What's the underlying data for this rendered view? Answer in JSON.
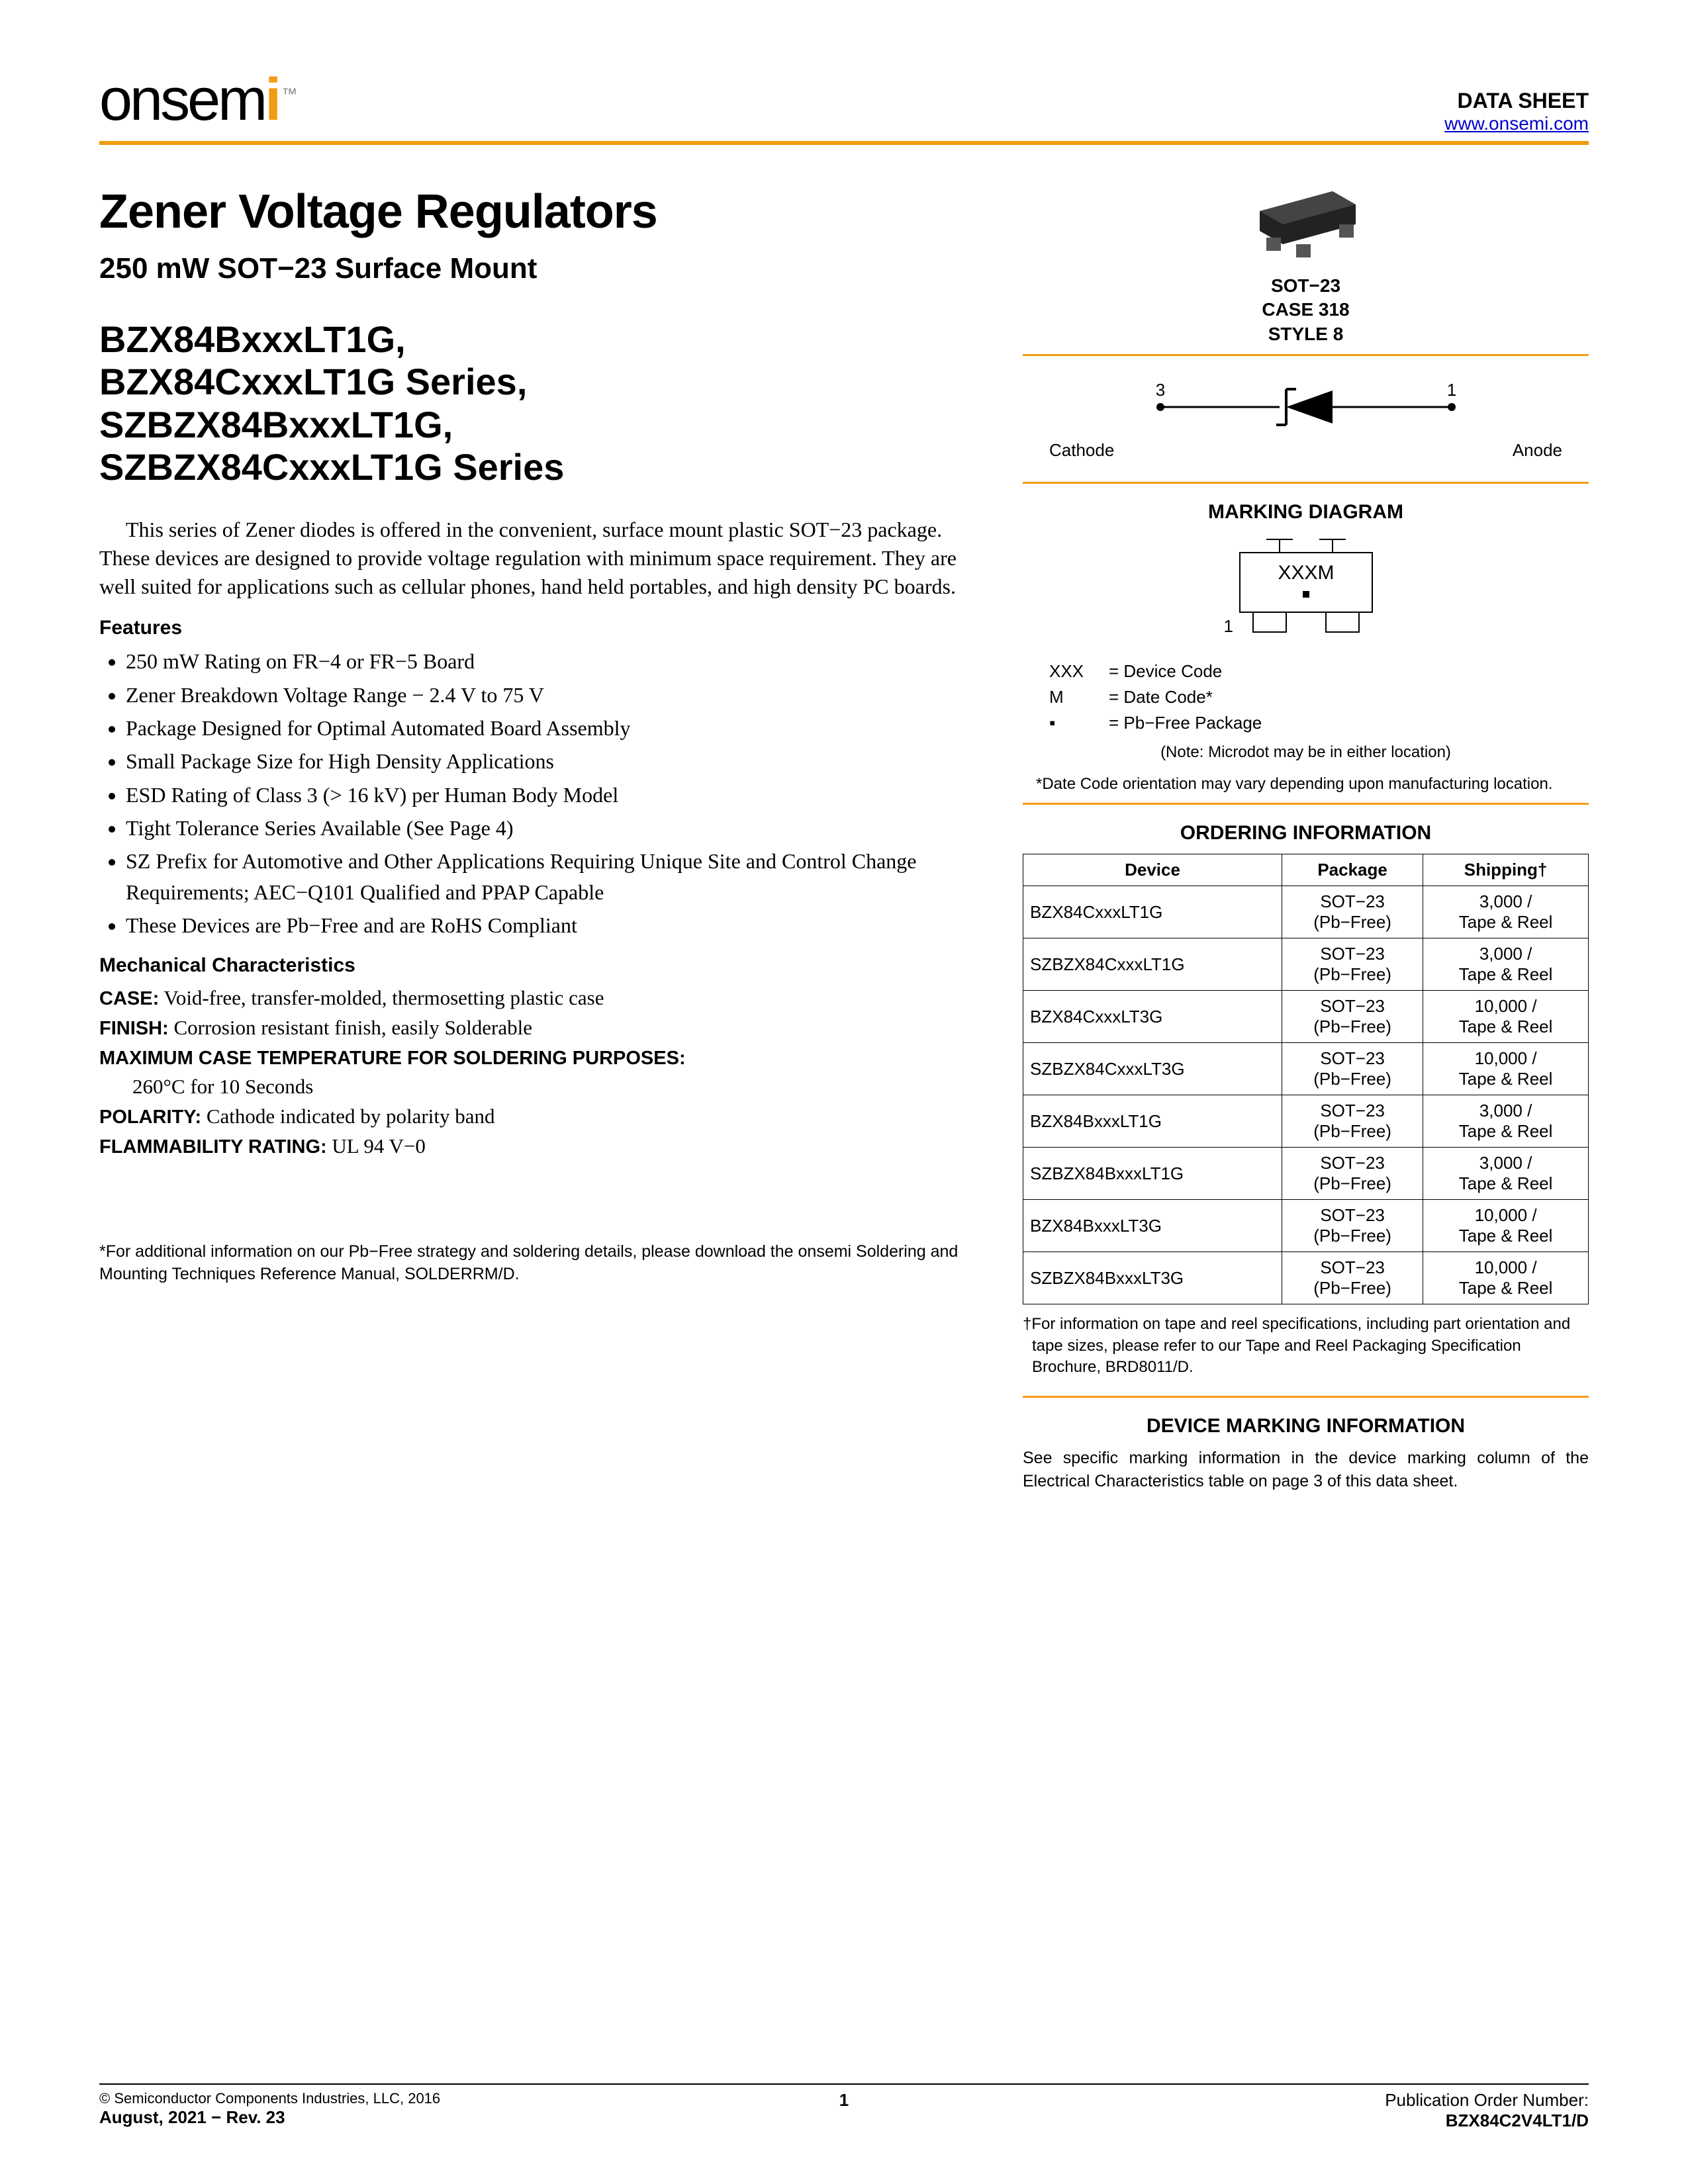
{
  "header": {
    "logo_main": "onsem",
    "logo_accent": "i",
    "logo_tm": "™",
    "data_sheet": "DATA SHEET",
    "link": "www.onsemi.com"
  },
  "title": "Zener Voltage Regulators",
  "subtitle": "250 mW SOT−23 Surface Mount",
  "series_lines": [
    "BZX84BxxxLT1G,",
    "BZX84CxxxLT1G Series,",
    "SZBZX84BxxxLT1G,",
    "SZBZX84CxxxLT1G Series"
  ],
  "intro": "This series of Zener diodes is offered in the convenient, surface mount plastic SOT−23 package. These devices are designed to provide voltage regulation with minimum space requirement. They are well suited for applications such as cellular phones, hand held portables, and high density PC boards.",
  "features_label": "Features",
  "features": [
    "250 mW Rating on FR−4 or FR−5 Board",
    "Zener Breakdown Voltage Range − 2.4 V to 75 V",
    "Package Designed for Optimal Automated Board Assembly",
    "Small Package Size for High Density Applications",
    "ESD Rating of Class 3 (> 16 kV) per Human Body Model",
    "Tight Tolerance Series Available (See Page 4)",
    "SZ Prefix for Automotive and Other Applications Requiring Unique Site and Control Change Requirements; AEC−Q101 Qualified and PPAP Capable",
    "These Devices are Pb−Free and are RoHS Compliant"
  ],
  "mech_label": "Mechanical Characteristics",
  "mech": {
    "case_k": "CASE:",
    "case_v": " Void-free, transfer-molded, thermosetting plastic case",
    "finish_k": "FINISH:",
    "finish_v": " Corrosion resistant finish, easily Solderable",
    "max_k": "MAXIMUM CASE TEMPERATURE FOR SOLDERING PURPOSES:",
    "max_v": "260°C for 10 Seconds",
    "pol_k": "POLARITY:",
    "pol_v": " Cathode indicated by polarity band",
    "flam_k": "FLAMMABILITY RATING:",
    "flam_v": " UL 94 V−0"
  },
  "package": {
    "l1": "SOT−23",
    "l2": "CASE 318",
    "l3": "STYLE 8"
  },
  "schematic": {
    "pin3": "3",
    "pin1": "1",
    "cathode": "Cathode",
    "anode": "Anode"
  },
  "marking_head": "MARKING DIAGRAM",
  "marking": {
    "chip": "XXXM",
    "dot": "▪",
    "pin1": "1"
  },
  "legend": [
    {
      "k": "XXX",
      "v": "= Device Code"
    },
    {
      "k": "M",
      "v": "= Date Code*"
    },
    {
      "k": "▪",
      "v": "= Pb−Free Package"
    }
  ],
  "legend_note1": "(Note: Microdot may be in either location)",
  "legend_note2": "*Date Code orientation may vary depending upon manufacturing location.",
  "order_head": "ORDERING INFORMATION",
  "order_cols": [
    "Device",
    "Package",
    "Shipping†"
  ],
  "order_rows": [
    {
      "dev": "BZX84CxxxLT1G",
      "pkg1": "SOT−23",
      "pkg2": "(Pb−Free)",
      "ship1": "3,000 /",
      "ship2": "Tape & Reel"
    },
    {
      "dev": "SZBZX84CxxxLT1G",
      "pkg1": "SOT−23",
      "pkg2": "(Pb−Free)",
      "ship1": "3,000 /",
      "ship2": "Tape & Reel"
    },
    {
      "dev": "BZX84CxxxLT3G",
      "pkg1": "SOT−23",
      "pkg2": "(Pb−Free)",
      "ship1": "10,000 /",
      "ship2": "Tape & Reel"
    },
    {
      "dev": "SZBZX84CxxxLT3G",
      "pkg1": "SOT−23",
      "pkg2": "(Pb−Free)",
      "ship1": "10,000 /",
      "ship2": "Tape & Reel"
    },
    {
      "dev": "BZX84BxxxLT1G",
      "pkg1": "SOT−23",
      "pkg2": "(Pb−Free)",
      "ship1": "3,000 /",
      "ship2": "Tape & Reel"
    },
    {
      "dev": "SZBZX84BxxxLT1G",
      "pkg1": "SOT−23",
      "pkg2": "(Pb−Free)",
      "ship1": "3,000 /",
      "ship2": "Tape & Reel"
    },
    {
      "dev": "BZX84BxxxLT3G",
      "pkg1": "SOT−23",
      "pkg2": "(Pb−Free)",
      "ship1": "10,000 /",
      "ship2": "Tape & Reel"
    },
    {
      "dev": "SZBZX84BxxxLT3G",
      "pkg1": "SOT−23",
      "pkg2": "(Pb−Free)",
      "ship1": "10,000 /",
      "ship2": "Tape & Reel"
    }
  ],
  "order_note": "†For information on tape and reel specifications, including part orientation and tape sizes, please refer to our Tape and Reel Packaging Specification Brochure, BRD8011/D.",
  "devmark_head": "DEVICE MARKING INFORMATION",
  "devmark": "See specific marking information in the device marking column of the Electrical Characteristics table on page 3 of this data sheet.",
  "pbfree_note": "*For additional information on our Pb−Free strategy and soldering details, please download the onsemi Soldering and Mounting Techniques Reference Manual, SOLDERRM/D.",
  "footer": {
    "copyright": "©  Semiconductor Components Industries, LLC, 2016",
    "date": "August, 2021 − Rev. 23",
    "page": "1",
    "pon_label": "Publication Order Number:",
    "pon": "BZX84C2V4LT1/D"
  },
  "colors": {
    "orange": "#f39c12",
    "link": "#0000cc"
  }
}
